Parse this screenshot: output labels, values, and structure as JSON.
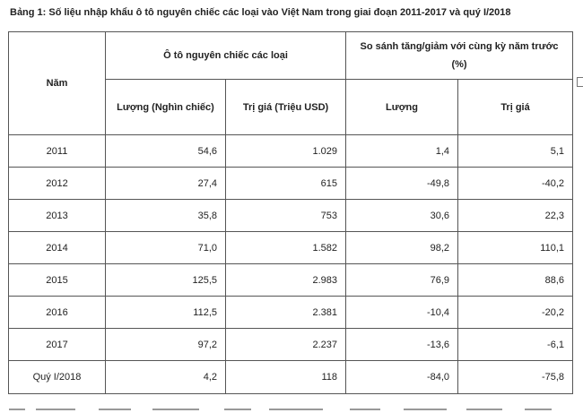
{
  "caption": "Bảng 1: Số liệu nhập khẩu ô tô nguyên chiếc các loại vào Việt Nam trong giai đoạn 2011-2017 và quý I/2018",
  "table": {
    "header": {
      "year": "Năm",
      "group1": "Ô tô nguyên chiếc các loại",
      "group2": "So sánh tăng/giảm với cùng kỳ năm trước (%)",
      "qty": "Lượng (Nghìn chiếc)",
      "value": "Trị giá (Triệu USD)",
      "qty_pct": "Lượng",
      "value_pct": "Trị giá"
    },
    "rows": [
      {
        "year": "2011",
        "qty": "54,6",
        "value": "1.029",
        "qty_pct": "1,4",
        "value_pct": "5,1"
      },
      {
        "year": "2012",
        "qty": "27,4",
        "value": "615",
        "qty_pct": "-49,8",
        "value_pct": "-40,2"
      },
      {
        "year": "2013",
        "qty": "35,8",
        "value": "753",
        "qty_pct": "30,6",
        "value_pct": "22,3"
      },
      {
        "year": "2014",
        "qty": "71,0",
        "value": "1.582",
        "qty_pct": "98,2",
        "value_pct": "110,1"
      },
      {
        "year": "2015",
        "qty": "125,5",
        "value": "2.983",
        "qty_pct": "76,9",
        "value_pct": "88,6"
      },
      {
        "year": "2016",
        "qty": "112,5",
        "value": "2.381",
        "qty_pct": "-10,4",
        "value_pct": "-20,2"
      },
      {
        "year": "2017",
        "qty": "97,2",
        "value": "2.237",
        "qty_pct": "-13,6",
        "value_pct": "-6,1"
      },
      {
        "year": "Quý I/2018",
        "qty": "4,2",
        "value": "118",
        "qty_pct": "-84,0",
        "value_pct": "-75,8"
      }
    ]
  },
  "colors": {
    "border": "#555555",
    "text": "#222222",
    "background": "#ffffff"
  }
}
